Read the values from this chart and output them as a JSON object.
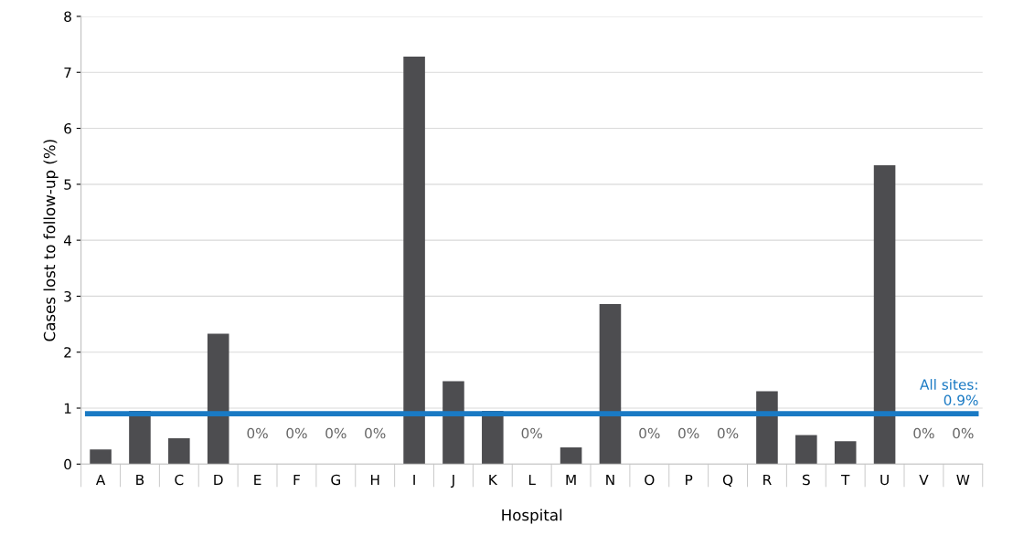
{
  "chart_data": {
    "type": "bar",
    "xlabel": "Hospital",
    "ylabel": "Cases lost to follow-up (%)",
    "categories": [
      "A",
      "B",
      "C",
      "D",
      "E",
      "F",
      "G",
      "H",
      "I",
      "J",
      "K",
      "L",
      "M",
      "N",
      "O",
      "P",
      "Q",
      "R",
      "S",
      "T",
      "U",
      "V",
      "W"
    ],
    "values": [
      0.26,
      0.95,
      0.46,
      2.33,
      0,
      0,
      0,
      0,
      7.28,
      1.48,
      0.95,
      0,
      0.3,
      2.86,
      0,
      0,
      0,
      1.3,
      0.52,
      0.41,
      5.34,
      0,
      0
    ],
    "value_labels": [
      null,
      null,
      null,
      null,
      "0%",
      "0%",
      "0%",
      "0%",
      null,
      null,
      null,
      "0%",
      null,
      null,
      "0%",
      "0%",
      "0%",
      null,
      null,
      null,
      null,
      "0%",
      "0%"
    ],
    "color": "#4d4d50",
    "ylim": [
      0,
      8
    ],
    "yticks": [
      0,
      1,
      2,
      3,
      4,
      5,
      6,
      7,
      8
    ],
    "grid": "y",
    "ref_lines": [
      {
        "axis": "y",
        "value": 0.9,
        "label": "All sites:\n0.9%",
        "color": "#1a7ac4"
      }
    ]
  }
}
